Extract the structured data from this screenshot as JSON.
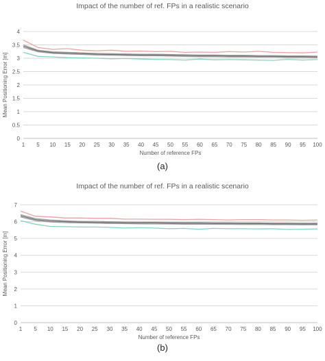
{
  "chart_data": [
    {
      "type": "line",
      "title": "Impact of the number of ref. FPs in a realistic scenario",
      "xlabel": "Number of reference FPs",
      "ylabel": "Mean Positioning Error [m]",
      "caption": "(a)",
      "categories": [
        "1",
        "5",
        "10",
        "15",
        "20",
        "25",
        "30",
        "35",
        "40",
        "45",
        "50",
        "55",
        "60",
        "65",
        "70",
        "75",
        "80",
        "85",
        "90",
        "95",
        "100"
      ],
      "ylim": [
        0,
        4
      ],
      "yticks": [
        "0",
        "0.5",
        "1",
        "1.5",
        "2",
        "2.5",
        "3",
        "3.5",
        "4"
      ],
      "grid": true,
      "series": [
        {
          "color": "#f4a09c",
          "values": [
            3.68,
            3.4,
            3.33,
            3.36,
            3.3,
            3.28,
            3.3,
            3.26,
            3.27,
            3.25,
            3.26,
            3.22,
            3.23,
            3.22,
            3.25,
            3.23,
            3.26,
            3.22,
            3.21,
            3.2,
            3.23
          ]
        },
        {
          "color": "#a0a0a0",
          "values": [
            3.5,
            3.3,
            3.24,
            3.22,
            3.2,
            3.18,
            3.17,
            3.16,
            3.15,
            3.15,
            3.14,
            3.13,
            3.12,
            3.12,
            3.11,
            3.11,
            3.1,
            3.1,
            3.09,
            3.09,
            3.08
          ]
        },
        {
          "color": "#6e6e6e",
          "values": [
            3.45,
            3.27,
            3.21,
            3.19,
            3.17,
            3.15,
            3.14,
            3.13,
            3.12,
            3.12,
            3.11,
            3.1,
            3.09,
            3.09,
            3.08,
            3.08,
            3.07,
            3.07,
            3.06,
            3.06,
            3.05
          ]
        },
        {
          "color": "#a0a0a0",
          "values": [
            3.4,
            3.24,
            3.18,
            3.16,
            3.14,
            3.12,
            3.11,
            3.1,
            3.09,
            3.09,
            3.08,
            3.07,
            3.06,
            3.06,
            3.05,
            3.05,
            3.04,
            3.04,
            3.03,
            3.03,
            3.02
          ]
        },
        {
          "color": "#7fd6c0",
          "values": [
            3.22,
            3.07,
            3.05,
            3.02,
            3.01,
            3.0,
            2.98,
            2.99,
            2.97,
            2.96,
            2.95,
            2.93,
            2.97,
            2.94,
            2.95,
            2.94,
            2.93,
            2.92,
            2.96,
            2.93,
            2.95
          ]
        }
      ]
    },
    {
      "type": "line",
      "title": "Impact of the number of ref. FPs in a realistic scenario",
      "xlabel": "Number of reference FPs",
      "ylabel": "Mean Positioning Error [m]",
      "caption": "(b)",
      "categories": [
        "1",
        "5",
        "10",
        "15",
        "20",
        "25",
        "30",
        "35",
        "40",
        "45",
        "50",
        "55",
        "60",
        "65",
        "70",
        "75",
        "80",
        "85",
        "90",
        "95",
        "100"
      ],
      "ylim": [
        0,
        7
      ],
      "yticks": [
        "0",
        "1",
        "2",
        "3",
        "4",
        "5",
        "6",
        "7"
      ],
      "grid": true,
      "series": [
        {
          "color": "#f4a09c",
          "values": [
            6.62,
            6.32,
            6.28,
            6.22,
            6.22,
            6.2,
            6.2,
            6.15,
            6.15,
            6.14,
            6.14,
            6.12,
            6.14,
            6.12,
            6.1,
            6.12,
            6.12,
            6.1,
            6.1,
            6.08,
            6.1
          ]
        },
        {
          "color": "#a0a0a0",
          "values": [
            6.42,
            6.18,
            6.1,
            6.05,
            6.02,
            6.02,
            6.0,
            5.98,
            5.97,
            5.97,
            5.96,
            5.95,
            5.95,
            5.94,
            5.94,
            5.93,
            5.93,
            5.92,
            5.92,
            5.91,
            5.91
          ]
        },
        {
          "color": "#6e6e6e",
          "values": [
            6.35,
            6.12,
            6.04,
            6.0,
            5.97,
            5.96,
            5.95,
            5.93,
            5.92,
            5.92,
            5.91,
            5.9,
            5.9,
            5.89,
            5.89,
            5.88,
            5.88,
            5.87,
            5.87,
            5.86,
            5.86
          ]
        },
        {
          "color": "#a0a0a0",
          "values": [
            6.28,
            6.06,
            5.98,
            5.94,
            5.92,
            5.91,
            5.89,
            5.88,
            5.87,
            5.86,
            5.86,
            5.85,
            5.85,
            5.84,
            5.84,
            5.83,
            5.83,
            5.82,
            5.82,
            5.81,
            5.81
          ]
        },
        {
          "color": "#7fd6c0",
          "values": [
            6.05,
            5.85,
            5.72,
            5.7,
            5.68,
            5.68,
            5.66,
            5.62,
            5.64,
            5.62,
            5.58,
            5.6,
            5.55,
            5.6,
            5.58,
            5.58,
            5.57,
            5.58,
            5.54,
            5.55,
            5.57
          ]
        }
      ]
    }
  ]
}
